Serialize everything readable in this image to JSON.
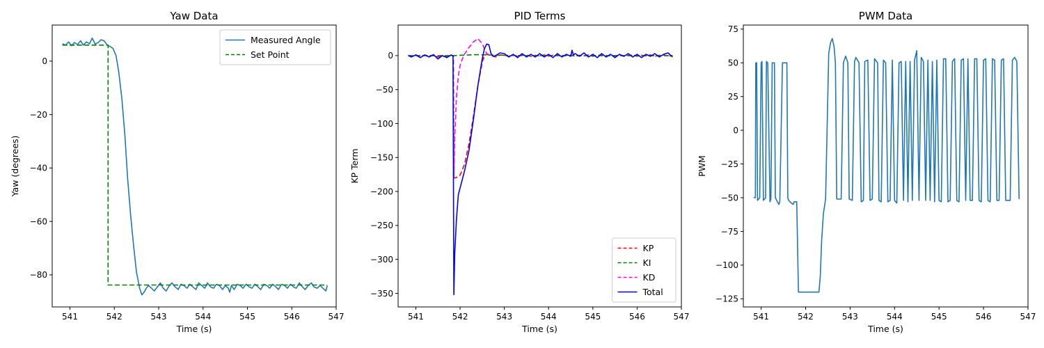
{
  "chart_data": [
    {
      "type": "line",
      "title": "Yaw Data",
      "xlabel": "Time (s)",
      "ylabel": "Yaw (degrees)",
      "xlim": [
        540.6,
        547.0
      ],
      "ylim": [
        -92,
        13.5
      ],
      "xticks": [
        541,
        542,
        543,
        544,
        545,
        546,
        547
      ],
      "yticks": [
        0,
        -20,
        -40,
        -60,
        -80
      ],
      "legend_position": "upper right",
      "series": [
        {
          "name": "Measured Angle",
          "color": "#1f77b4",
          "style": "solid",
          "x": [
            540.83,
            540.9,
            540.97,
            541.04,
            541.1,
            541.17,
            541.24,
            541.3,
            541.37,
            541.44,
            541.5,
            541.57,
            541.64,
            541.7,
            541.77,
            541.84,
            541.9,
            541.97,
            542.04,
            542.1,
            542.17,
            542.24,
            542.3,
            542.37,
            542.44,
            542.5,
            542.57,
            542.62,
            542.67,
            542.72,
            542.77,
            542.84,
            542.9,
            542.97,
            543.04,
            543.1,
            543.17,
            543.24,
            543.3,
            543.37,
            543.44,
            543.5,
            543.57,
            543.64,
            543.7,
            543.77,
            543.84,
            543.9,
            543.97,
            544.04,
            544.1,
            544.17,
            544.24,
            544.3,
            544.37,
            544.44,
            544.5,
            544.57,
            544.6,
            544.64,
            544.7,
            544.77,
            544.84,
            544.9,
            544.97,
            545.04,
            545.1,
            545.17,
            545.24,
            545.3,
            545.37,
            545.44,
            545.5,
            545.57,
            545.64,
            545.7,
            545.77,
            545.84,
            545.9,
            545.97,
            546.04,
            546.1,
            546.17,
            546.24,
            546.3,
            546.37,
            546.44,
            546.5,
            546.57,
            546.64,
            546.7,
            546.77,
            546.8
          ],
          "y": [
            6.5,
            6.0,
            7.2,
            5.8,
            7.0,
            6.2,
            7.6,
            6.0,
            7.2,
            6.5,
            8.6,
            6.4,
            7.0,
            8.0,
            7.6,
            6.0,
            5.5,
            4.8,
            2.0,
            -4.0,
            -14.0,
            -28.0,
            -44.0,
            -58.0,
            -70.0,
            -79.0,
            -85.0,
            -87.5,
            -86.5,
            -85.0,
            -84.0,
            -85.0,
            -86.0,
            -84.5,
            -83.0,
            -85.0,
            -86.0,
            -84.0,
            -83.0,
            -84.5,
            -85.5,
            -83.5,
            -84.0,
            -85.0,
            -83.5,
            -84.5,
            -85.5,
            -83.0,
            -84.0,
            -85.0,
            -83.0,
            -84.5,
            -85.0,
            -83.5,
            -84.0,
            -85.5,
            -84.0,
            -85.0,
            -86.5,
            -84.0,
            -85.5,
            -83.5,
            -84.0,
            -85.0,
            -83.5,
            -84.5,
            -85.0,
            -83.5,
            -84.5,
            -85.5,
            -83.5,
            -84.0,
            -85.0,
            -83.5,
            -84.5,
            -85.5,
            -83.5,
            -84.0,
            -85.0,
            -83.5,
            -84.5,
            -85.0,
            -83.0,
            -84.5,
            -85.5,
            -84.0,
            -83.0,
            -84.5,
            -85.0,
            -84.0,
            -85.0,
            -86.0,
            -84.0
          ]
        },
        {
          "name": "Set Point",
          "color": "#008000",
          "style": "dashed",
          "x": [
            540.83,
            541.86,
            541.86,
            546.8
          ],
          "y": [
            6.0,
            6.0,
            -83.8,
            -83.8
          ]
        }
      ]
    },
    {
      "type": "line",
      "title": "PID Terms",
      "xlabel": "Time (s)",
      "ylabel": "KP Term",
      "xlim": [
        540.6,
        547.0
      ],
      "ylim": [
        -370,
        45
      ],
      "xticks": [
        541,
        542,
        543,
        544,
        545,
        546,
        547
      ],
      "yticks": [
        0,
        -50,
        -100,
        -150,
        -200,
        -250,
        -300,
        -350
      ],
      "legend_position": "lower right",
      "series": [
        {
          "name": "KP",
          "color": "#ff0000",
          "style": "dashed",
          "x": [
            540.83,
            540.9,
            541.0,
            541.1,
            541.2,
            541.3,
            541.4,
            541.5,
            541.6,
            541.7,
            541.8,
            541.85,
            541.86,
            541.9,
            542.0,
            542.1,
            542.2,
            542.3,
            542.4,
            542.5,
            542.55,
            542.6,
            542.7,
            542.8,
            542.9,
            543.0,
            543.1,
            543.2,
            543.3,
            543.4,
            543.5,
            543.6,
            543.7,
            543.8,
            543.9,
            544.0,
            544.1,
            544.2,
            544.3,
            544.4,
            544.5,
            544.6,
            544.7,
            544.8,
            544.9,
            545.0,
            545.1,
            545.2,
            545.3,
            545.4,
            545.5,
            545.6,
            545.7,
            545.8,
            545.9,
            546.0,
            546.1,
            546.2,
            546.3,
            546.4,
            546.5,
            546.6,
            546.7,
            546.8
          ],
          "y": [
            0.5,
            -1.0,
            1.0,
            -1.2,
            0.8,
            -0.5,
            1.0,
            -2.0,
            -1.0,
            -1.5,
            0.5,
            0.0,
            -180.0,
            -180.0,
            -176.0,
            -160.0,
            -130.0,
            -90.0,
            -45.0,
            -10.0,
            0.0,
            2.0,
            0.0,
            -2.0,
            1.0,
            0.5,
            -1.0,
            1.0,
            -1.0,
            0.5,
            1.0,
            -1.0,
            0.5,
            -0.5,
            1.0,
            -1.0,
            0.5,
            1.0,
            -1.0,
            0.5,
            1.0,
            -1.0,
            0.5,
            -0.5,
            1.0,
            -1.0,
            0.5,
            1.0,
            -1.0,
            0.5,
            -0.5,
            1.0,
            -1.0,
            0.5,
            1.0,
            -1.0,
            0.5,
            -0.5,
            1.0,
            -1.0,
            0.5,
            1.0,
            -1.0,
            0.0
          ]
        },
        {
          "name": "KI",
          "color": "#008000",
          "style": "dashed",
          "x": [
            540.83,
            541.86,
            542.0,
            542.2,
            542.4,
            542.6,
            542.8,
            543.5,
            546.8
          ],
          "y": [
            0.0,
            0.0,
            0.5,
            1.0,
            1.5,
            1.0,
            0.5,
            0.0,
            0.0
          ]
        },
        {
          "name": "KD",
          "color": "#ff00ff",
          "style": "dashed",
          "x": [
            541.86,
            541.88,
            541.92,
            541.96,
            542.0,
            542.05,
            542.1,
            542.2,
            542.3,
            542.4,
            542.5,
            542.55,
            542.6,
            542.7
          ],
          "y": [
            -180.0,
            -120.0,
            -60.0,
            -30.0,
            -15.0,
            -5.0,
            2.0,
            12.0,
            20.0,
            25.0,
            18.0,
            10.0,
            3.0,
            0.0
          ]
        },
        {
          "name": "Total",
          "color": "#0000ff",
          "style": "solid",
          "x": [
            540.83,
            540.9,
            541.0,
            541.1,
            541.2,
            541.3,
            541.4,
            541.5,
            541.6,
            541.7,
            541.8,
            541.84,
            541.86,
            541.88,
            541.92,
            541.96,
            542.0,
            542.1,
            542.2,
            542.3,
            542.4,
            542.5,
            542.55,
            542.6,
            542.65,
            542.7,
            542.75,
            542.8,
            542.9,
            543.0,
            543.1,
            543.2,
            543.3,
            543.4,
            543.5,
            543.6,
            543.7,
            543.8,
            543.9,
            544.0,
            544.1,
            544.2,
            544.3,
            544.4,
            544.5,
            544.53,
            544.56,
            544.6,
            544.7,
            544.8,
            544.9,
            545.0,
            545.1,
            545.2,
            545.3,
            545.4,
            545.5,
            545.6,
            545.7,
            545.8,
            545.9,
            546.0,
            546.1,
            546.2,
            546.3,
            546.4,
            546.5,
            546.6,
            546.7,
            546.8
          ],
          "y": [
            0.0,
            -2.0,
            1.0,
            -3.0,
            1.0,
            -2.0,
            1.5,
            -5.0,
            0.0,
            -3.0,
            1.0,
            -1.0,
            -352.0,
            -290.0,
            -240.0,
            -205.0,
            -195.0,
            -170.0,
            -140.0,
            -95.0,
            -45.0,
            -5.0,
            10.0,
            17.0,
            16.0,
            3.0,
            -1.0,
            0.0,
            4.0,
            3.0,
            -2.0,
            2.0,
            -3.0,
            3.0,
            -2.0,
            2.0,
            -2.0,
            3.0,
            -2.0,
            2.0,
            -3.0,
            3.0,
            -2.0,
            2.0,
            -1.0,
            8.0,
            1.0,
            3.0,
            -1.0,
            4.0,
            -2.0,
            2.0,
            -3.0,
            3.0,
            -2.0,
            2.0,
            -3.0,
            2.0,
            -1.0,
            3.0,
            -2.0,
            2.0,
            -3.0,
            2.0,
            -1.0,
            3.0,
            -2.0,
            2.0,
            4.0,
            -2.0
          ]
        }
      ]
    },
    {
      "type": "line",
      "title": "PWM Data",
      "xlabel": "Time (s)",
      "ylabel": "PWM",
      "xlim": [
        540.6,
        547.0
      ],
      "ylim": [
        -131,
        78
      ],
      "xticks": [
        541,
        542,
        543,
        544,
        545,
        546,
        547
      ],
      "yticks": [
        75,
        50,
        25,
        0,
        -25,
        -50,
        -75,
        -100,
        -125
      ],
      "series": [
        {
          "name": "",
          "color": "#1f77b4",
          "style": "solid",
          "x": [
            540.83,
            540.87,
            540.88,
            540.9,
            540.92,
            540.97,
            541.0,
            541.02,
            541.05,
            541.1,
            541.12,
            541.15,
            541.2,
            541.22,
            541.25,
            541.3,
            541.32,
            541.35,
            541.4,
            541.42,
            541.48,
            541.5,
            541.52,
            541.58,
            541.6,
            541.62,
            541.68,
            541.72,
            541.74,
            541.8,
            541.84,
            541.86,
            542.3,
            542.33,
            542.36,
            542.4,
            542.45,
            542.52,
            542.56,
            542.6,
            542.64,
            542.67,
            542.7,
            542.75,
            542.8,
            542.85,
            542.9,
            542.95,
            542.98,
            543.05,
            543.1,
            543.13,
            543.2,
            543.25,
            543.3,
            543.33,
            543.4,
            543.45,
            543.5,
            543.55,
            543.62,
            543.65,
            543.7,
            543.75,
            543.8,
            543.85,
            543.9,
            543.95,
            544.0,
            544.05,
            544.1,
            544.15,
            544.2,
            544.25,
            544.3,
            544.35,
            544.4,
            544.45,
            544.5,
            544.55,
            544.6,
            544.65,
            544.7,
            544.75,
            544.8,
            544.85,
            544.9,
            544.95,
            545.0,
            545.05,
            545.1,
            545.15,
            545.2,
            545.25,
            545.3,
            545.35,
            545.4,
            545.45,
            545.5,
            545.55,
            545.6,
            545.65,
            545.7,
            545.75,
            545.8,
            545.85,
            545.9,
            545.95,
            546.0,
            546.05,
            546.1,
            546.15,
            546.2,
            546.25,
            546.3,
            546.35,
            546.4,
            546.45,
            546.5,
            546.55,
            546.6,
            546.65,
            546.7,
            546.75,
            546.8
          ],
          "y": [
            -50.0,
            -50.0,
            50.0,
            50.0,
            -52.0,
            -50.0,
            50.0,
            51.0,
            -52.0,
            -50.0,
            51.0,
            50.0,
            -53.0,
            -51.0,
            50.0,
            50.0,
            -50.0,
            -52.0,
            -55.0,
            -53.0,
            50.0,
            50.0,
            50.0,
            50.0,
            -50.0,
            -52.0,
            -54.0,
            -55.0,
            -53.0,
            -53.0,
            -120.0,
            -120.0,
            -120.0,
            -108.0,
            -82.0,
            -62.0,
            -51.0,
            57.0,
            65.0,
            68.0,
            62.0,
            50.0,
            -51.0,
            -51.0,
            -51.0,
            50.0,
            55.0,
            50.0,
            -51.0,
            -52.0,
            51.0,
            54.0,
            50.0,
            -53.0,
            -52.0,
            51.0,
            52.0,
            -52.0,
            -51.0,
            53.0,
            50.0,
            -52.0,
            -53.0,
            52.0,
            50.0,
            -53.0,
            -52.0,
            52.0,
            -52.0,
            -54.0,
            50.0,
            51.0,
            -52.0,
            51.0,
            -53.0,
            51.0,
            -52.0,
            52.0,
            59.0,
            -52.0,
            54.0,
            51.0,
            -52.0,
            52.0,
            -52.0,
            51.0,
            -53.0,
            52.0,
            -52.0,
            -53.0,
            53.0,
            53.0,
            -53.0,
            -52.0,
            51.0,
            53.0,
            -52.0,
            -53.0,
            52.0,
            53.0,
            -52.0,
            53.0,
            -52.0,
            -52.0,
            53.0,
            53.0,
            -52.0,
            -53.0,
            52.0,
            53.0,
            -52.0,
            -53.0,
            53.0,
            52.0,
            -52.0,
            -52.0,
            52.0,
            53.0,
            -52.0,
            -52.0,
            -52.0,
            52.0,
            54.0,
            51.0,
            -51.0
          ]
        }
      ]
    }
  ]
}
